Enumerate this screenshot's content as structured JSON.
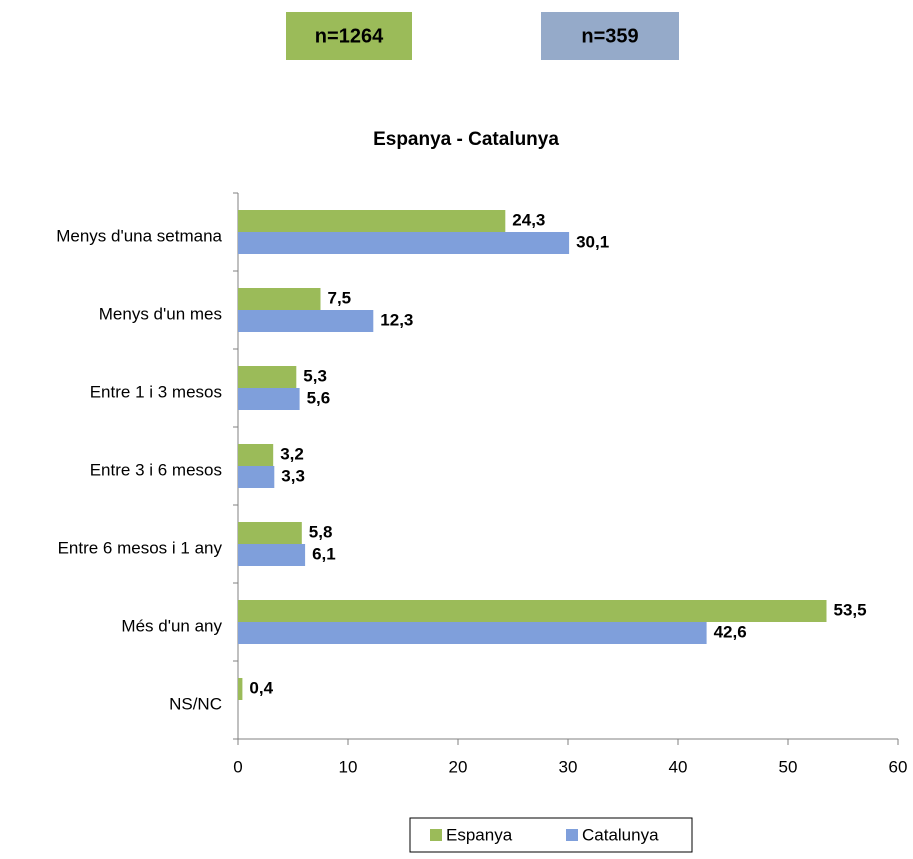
{
  "badges": [
    {
      "text": "n=1264",
      "color": "#9bbb59"
    },
    {
      "text": "n=359",
      "color": "#95aac9"
    }
  ],
  "chart_data": {
    "type": "barh",
    "title": "Espanya - Catalunya",
    "categories": [
      "Menys d'una setmana",
      "Menys d'un mes",
      "Entre 1 i 3 mesos",
      "Entre 3 i 6 mesos",
      "Entre 6 mesos i 1 any",
      "Més d'un any",
      "NS/NC"
    ],
    "series": [
      {
        "name": "Espanya",
        "color": "#9bbb59",
        "values": [
          24.3,
          7.5,
          5.3,
          3.2,
          5.8,
          53.5,
          0.4
        ],
        "value_labels": [
          "24,3",
          "7,5",
          "5,3",
          "3,2",
          "5,8",
          "53,5",
          "0,4"
        ]
      },
      {
        "name": "Catalunya",
        "color": "#7f9fdb",
        "values": [
          30.1,
          12.3,
          5.6,
          3.3,
          6.1,
          42.6,
          null
        ],
        "value_labels": [
          "30,1",
          "12,3",
          "5,6",
          "3,3",
          "6,1",
          "42,6",
          null
        ]
      }
    ],
    "xlim": [
      0,
      60
    ],
    "xticks": [
      0,
      10,
      20,
      30,
      40,
      50,
      60
    ],
    "grid": false,
    "legend": "bottom"
  }
}
